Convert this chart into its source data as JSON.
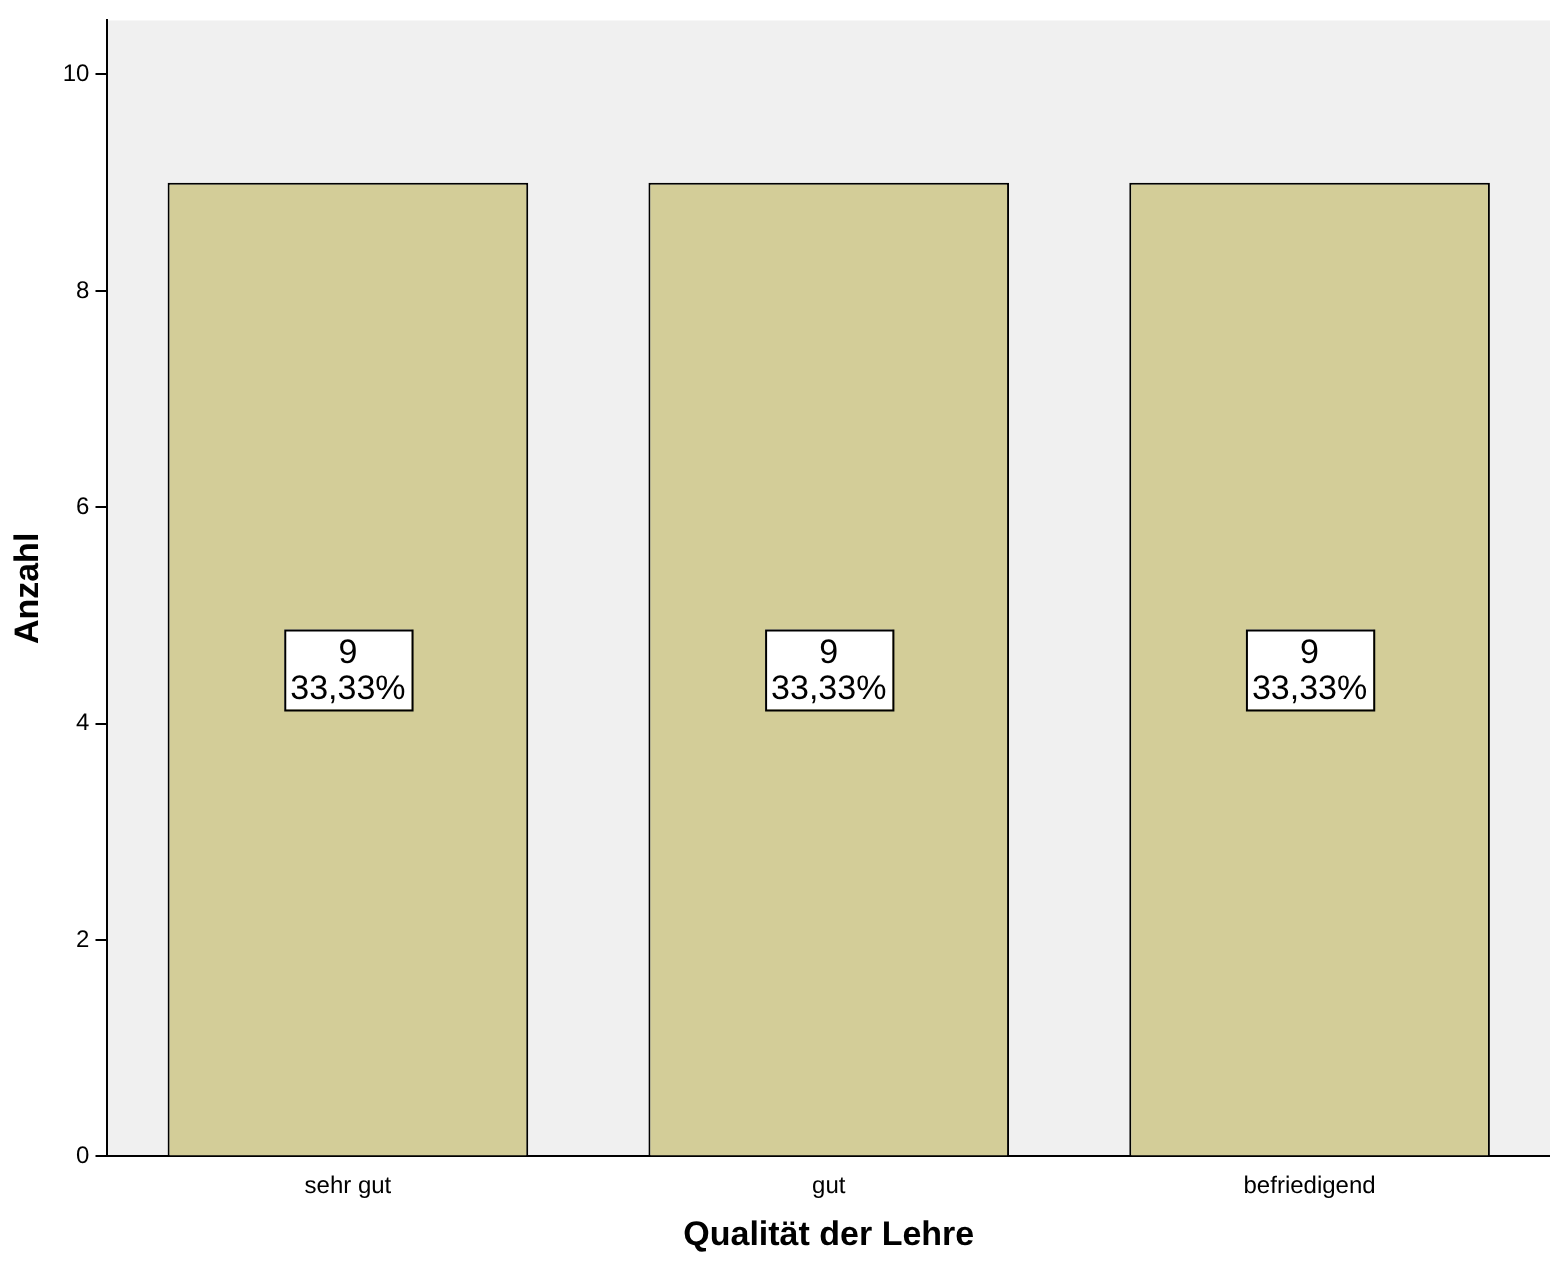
{
  "chart_data": {
    "type": "bar",
    "xlabel": "Qualität der Lehre",
    "ylabel": "Anzahl",
    "categories": [
      "sehr gut",
      "gut",
      "befriedigend"
    ],
    "values": [
      9,
      9,
      9
    ],
    "color": "#d3cd98",
    "value_labels": [
      "9\n33,33%",
      "9\n33,33%",
      "9\n33,33%"
    ],
    "ylim": [
      0,
      10.5
    ],
    "yticks": [
      0,
      2,
      4,
      6,
      8,
      10
    ],
    "grid": false,
    "legend": false
  }
}
